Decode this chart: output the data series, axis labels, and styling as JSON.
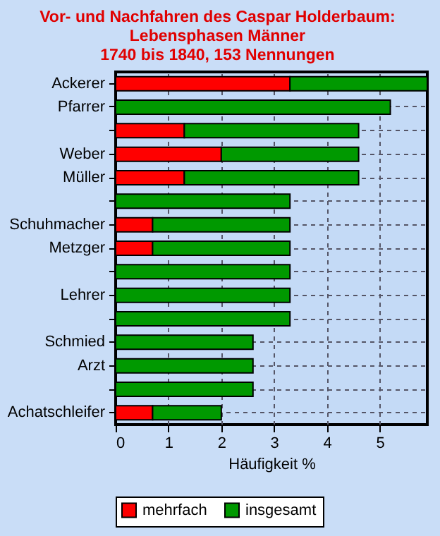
{
  "chart_data": {
    "type": "bar",
    "orientation": "horizontal",
    "stacked": true,
    "title": "Vor- und Nachfahren des Caspar Holderbaum:\nLebensphasen Männer\n1740 bis 1840, 153 Nennungen",
    "xlabel": "Häufigkeit %",
    "categories": [
      "Ackerer",
      "Pfarrer",
      null,
      "Weber",
      "Müller",
      null,
      "Schuhmacher",
      "Metzger",
      null,
      "Lehrer",
      null,
      "Schmied",
      "Arzt",
      null,
      "Achatschleifer"
    ],
    "series": [
      {
        "name": "mehrfach",
        "color": "#ff0000",
        "values": [
          3.3,
          0,
          1.3,
          2.0,
          1.3,
          0,
          0.7,
          0.7,
          0,
          0,
          0,
          0,
          0,
          0,
          0.7
        ]
      },
      {
        "name": "insgesamt",
        "color": "#009900",
        "values": [
          2.6,
          5.2,
          3.3,
          2.6,
          3.3,
          3.3,
          2.6,
          2.6,
          3.3,
          3.3,
          3.3,
          2.6,
          2.6,
          2.6,
          1.3
        ]
      }
    ],
    "xlim": [
      0,
      5.9
    ],
    "xticks": [
      0,
      1,
      2,
      3,
      4,
      5
    ],
    "grid": true,
    "legend": "bottom"
  }
}
